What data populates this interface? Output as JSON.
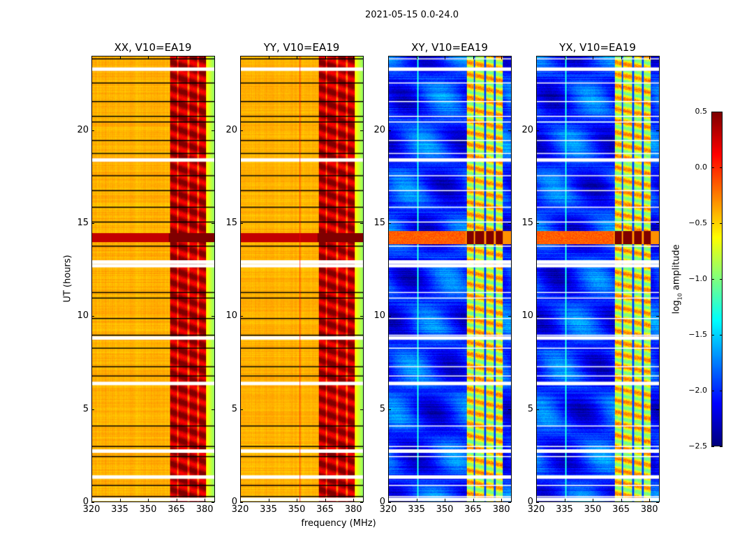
{
  "chart_data": {
    "type": "heatmap",
    "title": "2021-05-15 0.0-24.0",
    "xlabel": "frequency (MHz)",
    "ylabel": "UT (hours)",
    "xlim": [
      320,
      385.5
    ],
    "ylim": [
      0,
      24
    ],
    "xticks": [
      "320",
      "335",
      "350",
      "365",
      "380"
    ],
    "xtick_values": [
      320,
      335,
      350,
      365,
      380
    ],
    "yticks": [
      "0",
      "5",
      "10",
      "15",
      "20"
    ],
    "ytick_values": [
      0,
      5,
      10,
      15,
      20
    ],
    "colormap": "jet",
    "colorbar": {
      "label_prefix": "log",
      "label_sub": "10",
      "label_suffix": " amplitude",
      "range": [
        -2.5,
        0.5
      ],
      "ticks": [
        "0.5",
        "0.0",
        "−0.5",
        "−1.0",
        "−1.5",
        "−2.0",
        "−2.5"
      ],
      "tick_values": [
        0.5,
        0.0,
        -0.5,
        -1.0,
        -1.5,
        -2.0,
        -2.5
      ]
    },
    "panels": [
      {
        "title": "XX, V10=EA19",
        "kind": "auto",
        "background_level": -0.4,
        "band_level": 0.15
      },
      {
        "title": "YY, V10=EA19",
        "kind": "auto",
        "background_level": -0.4,
        "band_level": 0.15
      },
      {
        "title": "XY, V10=EA19",
        "kind": "cross",
        "background_level": -2.0,
        "band_level": -0.7
      },
      {
        "title": "YX, V10=EA19",
        "kind": "cross",
        "background_level": -2.0,
        "band_level": -0.7
      }
    ],
    "band_columns_mhz": [
      [
        361.5,
        365.5
      ],
      [
        366,
        371
      ],
      [
        372,
        376
      ],
      [
        377,
        381
      ]
    ],
    "bright_rfi_time_hours": [
      14.0,
      14.5
    ],
    "flagged_rows_hours": [
      0.1,
      1.3,
      2.7,
      6.35,
      8.8,
      12.7,
      12.9,
      18.4,
      23.3
    ],
    "flag_lines_hours": [
      0.3,
      0.9,
      2.45,
      3.0,
      4.1,
      6.8,
      7.3,
      8.3,
      9.0,
      9.9,
      11.0,
      11.3,
      13.8,
      15.1,
      15.9,
      16.8,
      17.6,
      18.8,
      19.5,
      20.5,
      20.8,
      21.6,
      22.6,
      23.9
    ]
  }
}
